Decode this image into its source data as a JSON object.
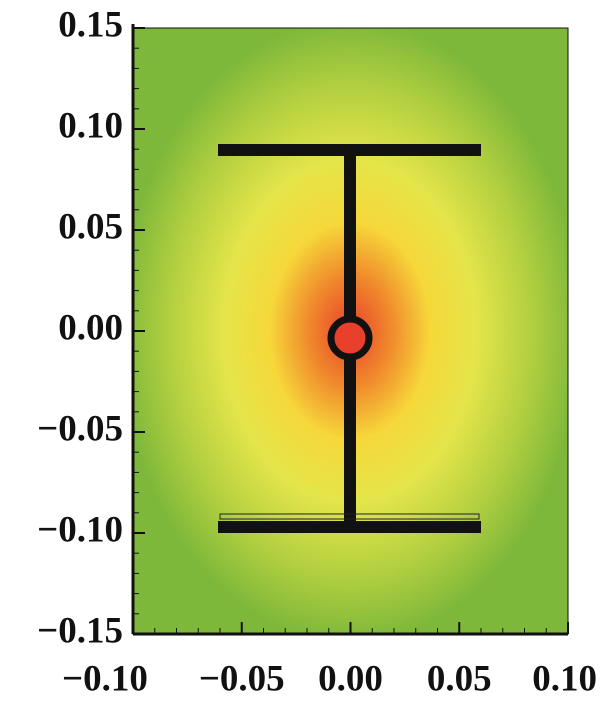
{
  "chart_data": {
    "type": "contour",
    "xlim": [
      -0.1,
      0.1
    ],
    "ylim": [
      -0.15,
      0.15
    ],
    "xticks": [
      {
        "value": -0.1,
        "label": "−0.10"
      },
      {
        "value": -0.05,
        "label": "−0.05"
      },
      {
        "value": 0,
        "label": "0.00"
      },
      0.05,
      {
        "value": 0.1,
        "label": "0.10"
      }
    ],
    "yticks": [
      0.15,
      {
        "value": 0.1,
        "label": "0.10"
      },
      0.05,
      {
        "value": 0,
        "label": "0.00"
      },
      {
        "value": -0.05,
        "label": "−0.05"
      },
      {
        "value": -0.1,
        "label": "−0.10"
      },
      {
        "value": -0.15,
        "label": "−0.15"
      }
    ]
  }
}
